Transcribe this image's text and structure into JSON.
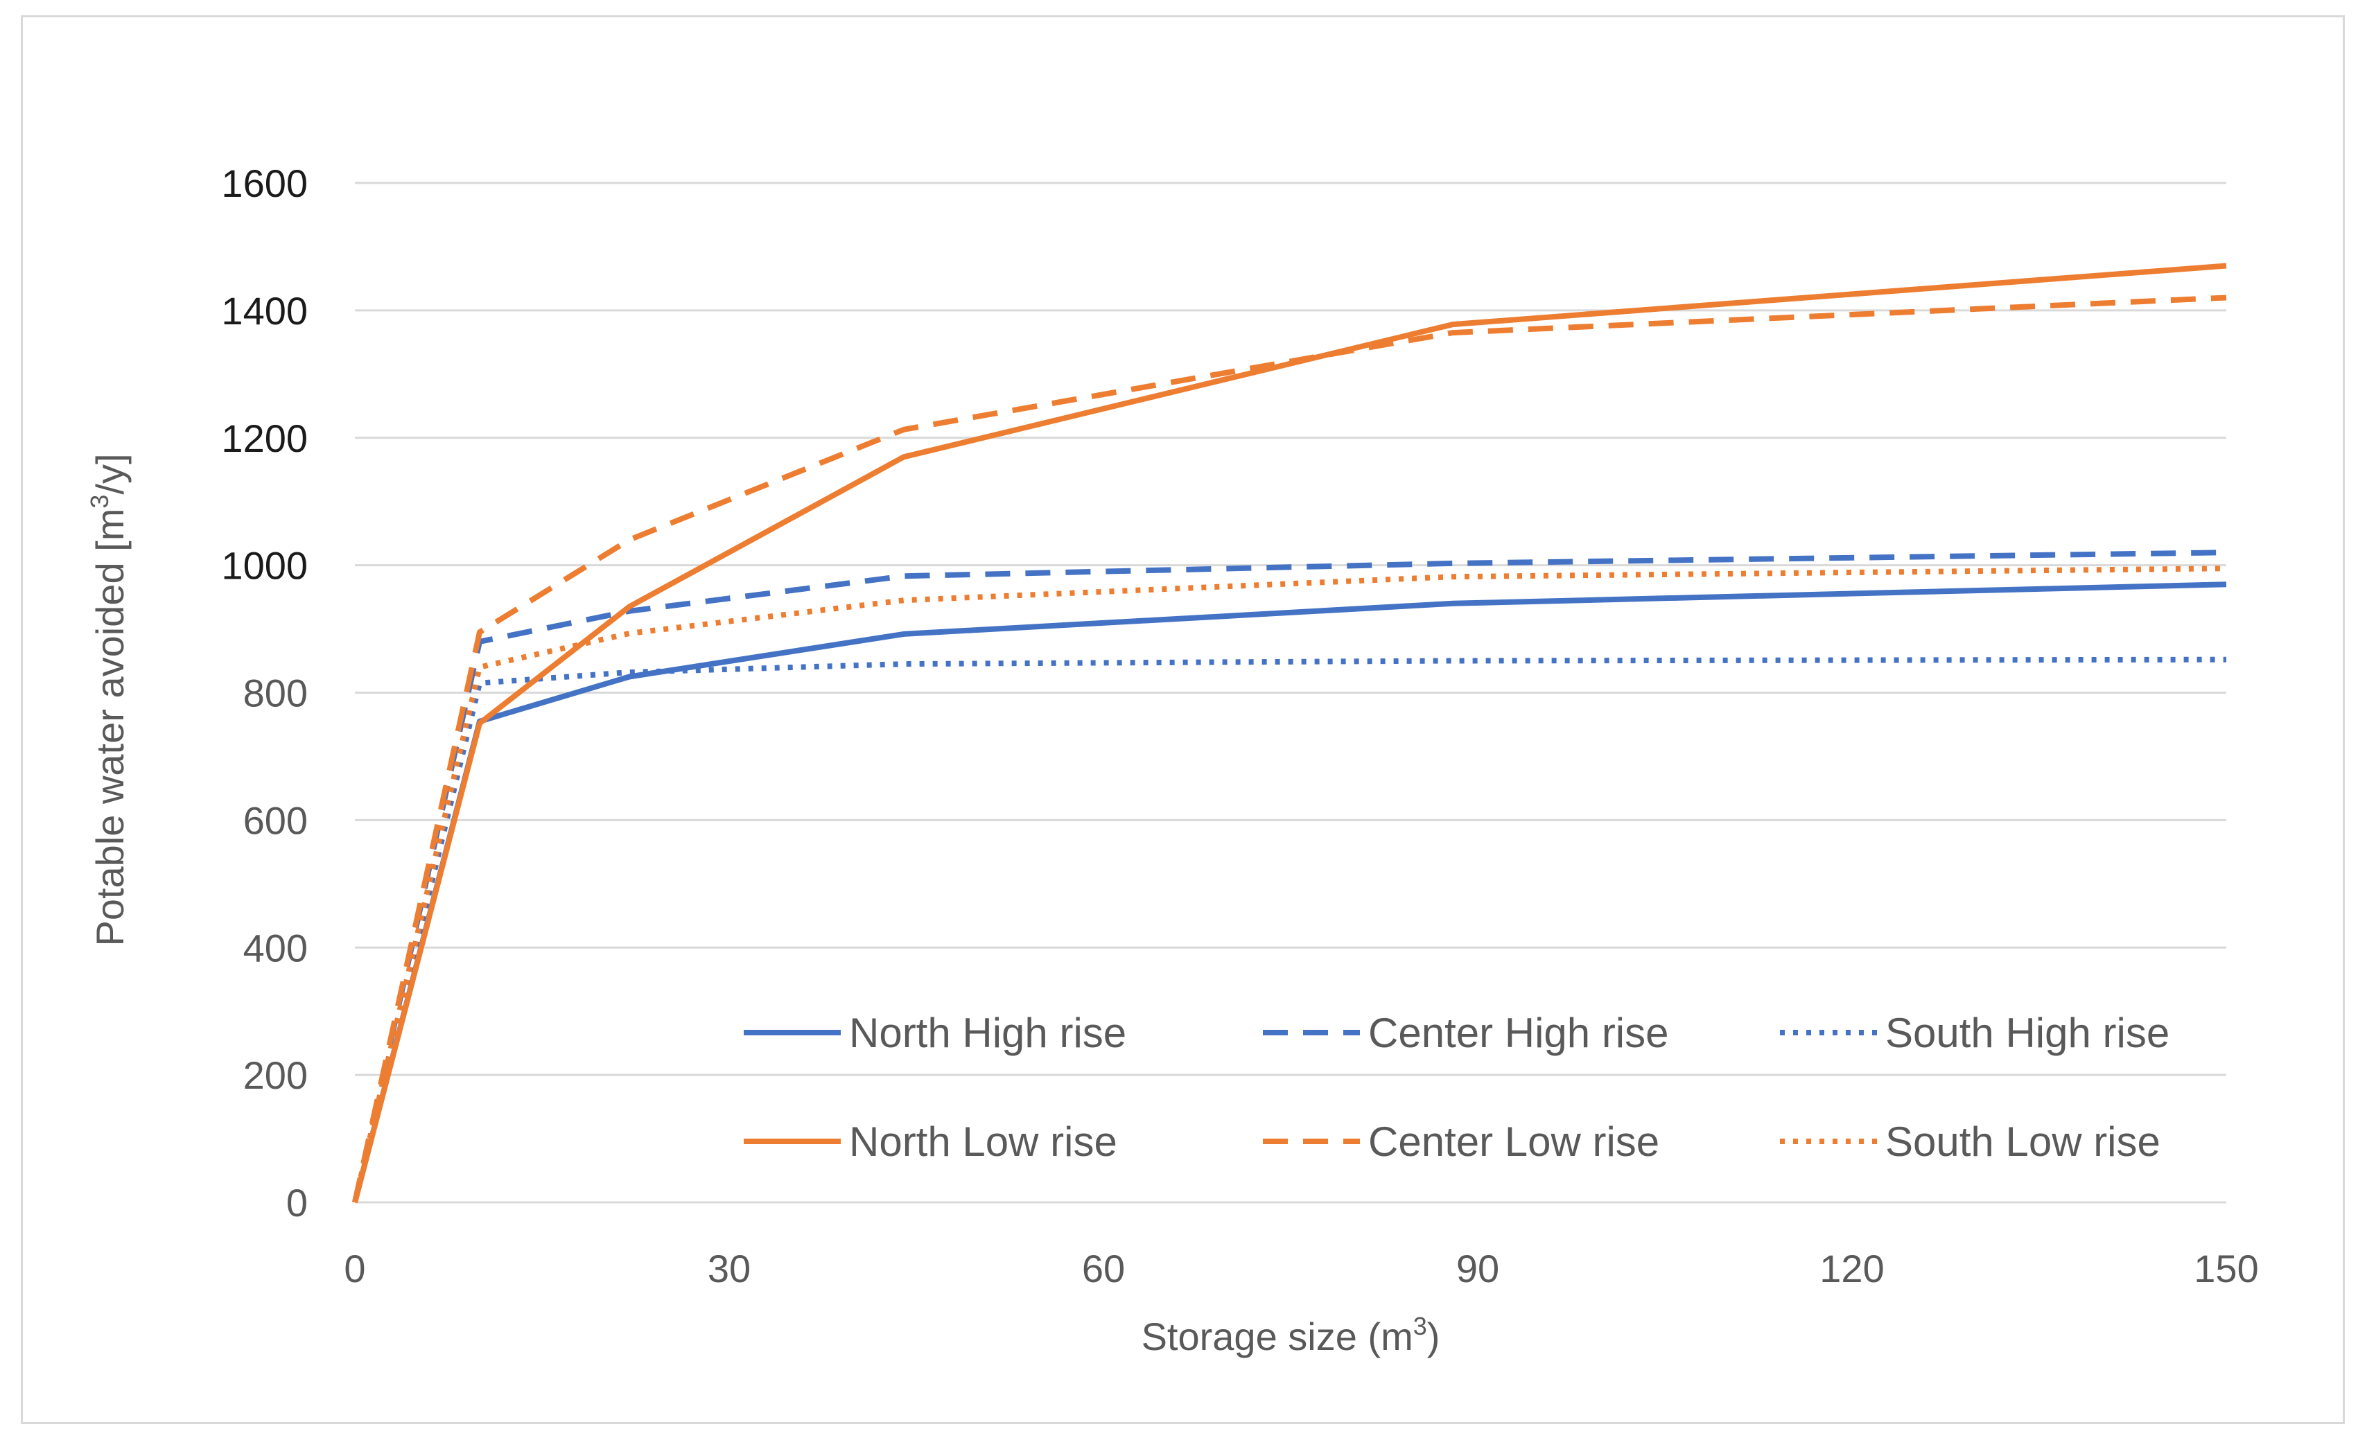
{
  "chart_data": {
    "type": "line",
    "title": "",
    "xlabel": "Storage size (m",
    "xlabel_sup": "3",
    "xlabel_end": ")",
    "ylabel": "Potable water avoided [m",
    "ylabel_sup": "3",
    "ylabel_end": "/y]",
    "xlim": [
      0,
      150
    ],
    "ylim": [
      0,
      1600
    ],
    "xticks": [
      0,
      30,
      60,
      90,
      120,
      150
    ],
    "yticks": [
      0,
      200,
      400,
      600,
      800,
      1000,
      1200,
      1400,
      1600
    ],
    "grid": "horizontal",
    "legend_position": "bottom-right",
    "series": [
      {
        "name": "North High rise",
        "color": "#4472c4",
        "dash": "solid",
        "x": [
          0,
          10,
          22,
          44,
          88,
          150
        ],
        "y": [
          0,
          755,
          825,
          892,
          940,
          970
        ]
      },
      {
        "name": "Center High rise",
        "color": "#4472c4",
        "dash": "dashed",
        "x": [
          0,
          10,
          22,
          44,
          88,
          150
        ],
        "y": [
          0,
          880,
          928,
          983,
          1003,
          1020
        ]
      },
      {
        "name": "South High rise",
        "color": "#4472c4",
        "dash": "dotted",
        "x": [
          0,
          10,
          22,
          44,
          88,
          150
        ],
        "y": [
          0,
          815,
          832,
          845,
          850,
          852
        ]
      },
      {
        "name": "North Low rise",
        "color": "#ed7d31",
        "dash": "solid",
        "x": [
          0,
          10,
          22,
          44,
          88,
          150
        ],
        "y": [
          0,
          752,
          935,
          1170,
          1378,
          1470
        ]
      },
      {
        "name": "Center Low rise",
        "color": "#ed7d31",
        "dash": "dashed",
        "x": [
          0,
          10,
          22,
          44,
          88,
          150
        ],
        "y": [
          0,
          895,
          1040,
          1213,
          1365,
          1420
        ]
      },
      {
        "name": "South Low rise",
        "color": "#ed7d31",
        "dash": "dotted",
        "x": [
          0,
          10,
          22,
          44,
          88,
          150
        ],
        "y": [
          0,
          840,
          893,
          945,
          982,
          995
        ]
      }
    ]
  }
}
